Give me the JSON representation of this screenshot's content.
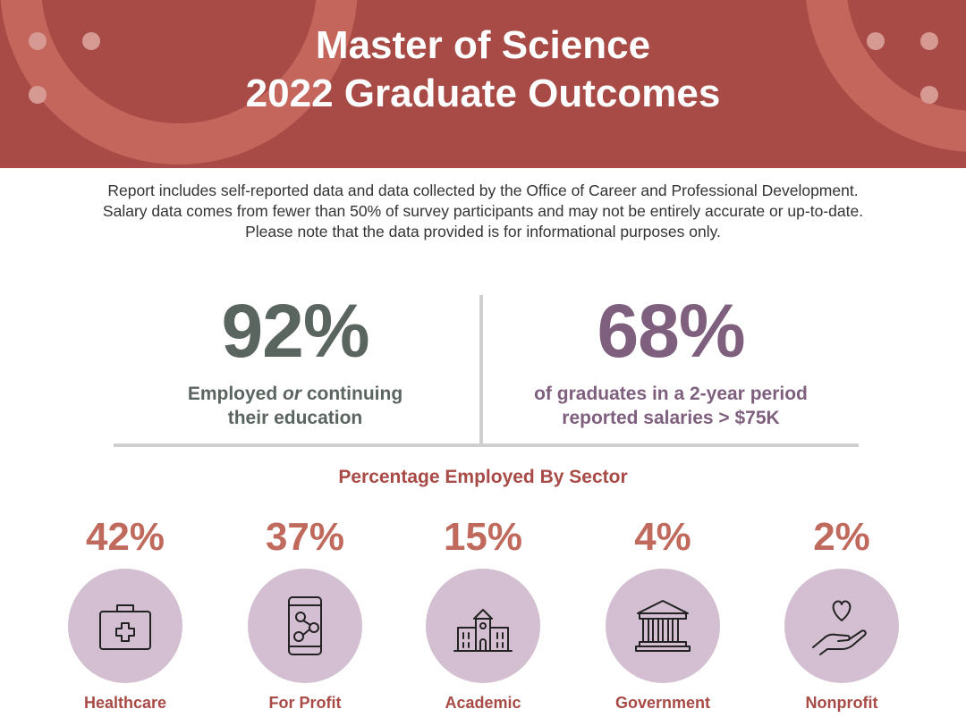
{
  "header": {
    "title_line1": "Master of Science",
    "title_line2": "2022 Graduate Outcomes"
  },
  "notes": [
    "Report includes self-reported data and data collected by the Office of Career and Professional Development.",
    "Salary data comes from fewer than 50% of survey participants and may not be entirely accurate or up-to-date.",
    "Please note that the data provided is for informational purposes only."
  ],
  "stats": {
    "employed": {
      "value": "92%",
      "label_part1": "Employed ",
      "label_em": "or",
      "label_part2": " continuing",
      "label_line2": "their education"
    },
    "salary": {
      "value": "68%",
      "label_line1": "of graduates in a 2-year period",
      "label_line2": "reported salaries > $75K"
    }
  },
  "sectors": {
    "title": "Percentage Employed By Sector",
    "items": [
      {
        "percent": "42%",
        "name": "Healthcare",
        "icon": "medical-kit-icon"
      },
      {
        "percent": "37%",
        "name": "For Profit",
        "icon": "mobile-network-icon"
      },
      {
        "percent": "15%",
        "name": "Academic",
        "icon": "school-building-icon"
      },
      {
        "percent": "4%",
        "name": "Government",
        "icon": "government-building-icon"
      },
      {
        "percent": "2%",
        "name": "Nonprofit",
        "icon": "heart-in-hand-icon"
      }
    ]
  },
  "colors": {
    "banner": "#a84a45",
    "banner_ring": "#c4665c",
    "stat_gray": "#5b6560",
    "stat_mauve": "#7f5f7e",
    "sector_percent": "#c06a5e",
    "sector_circle": "#d3bfd1",
    "divider": "#cfcfcf"
  }
}
